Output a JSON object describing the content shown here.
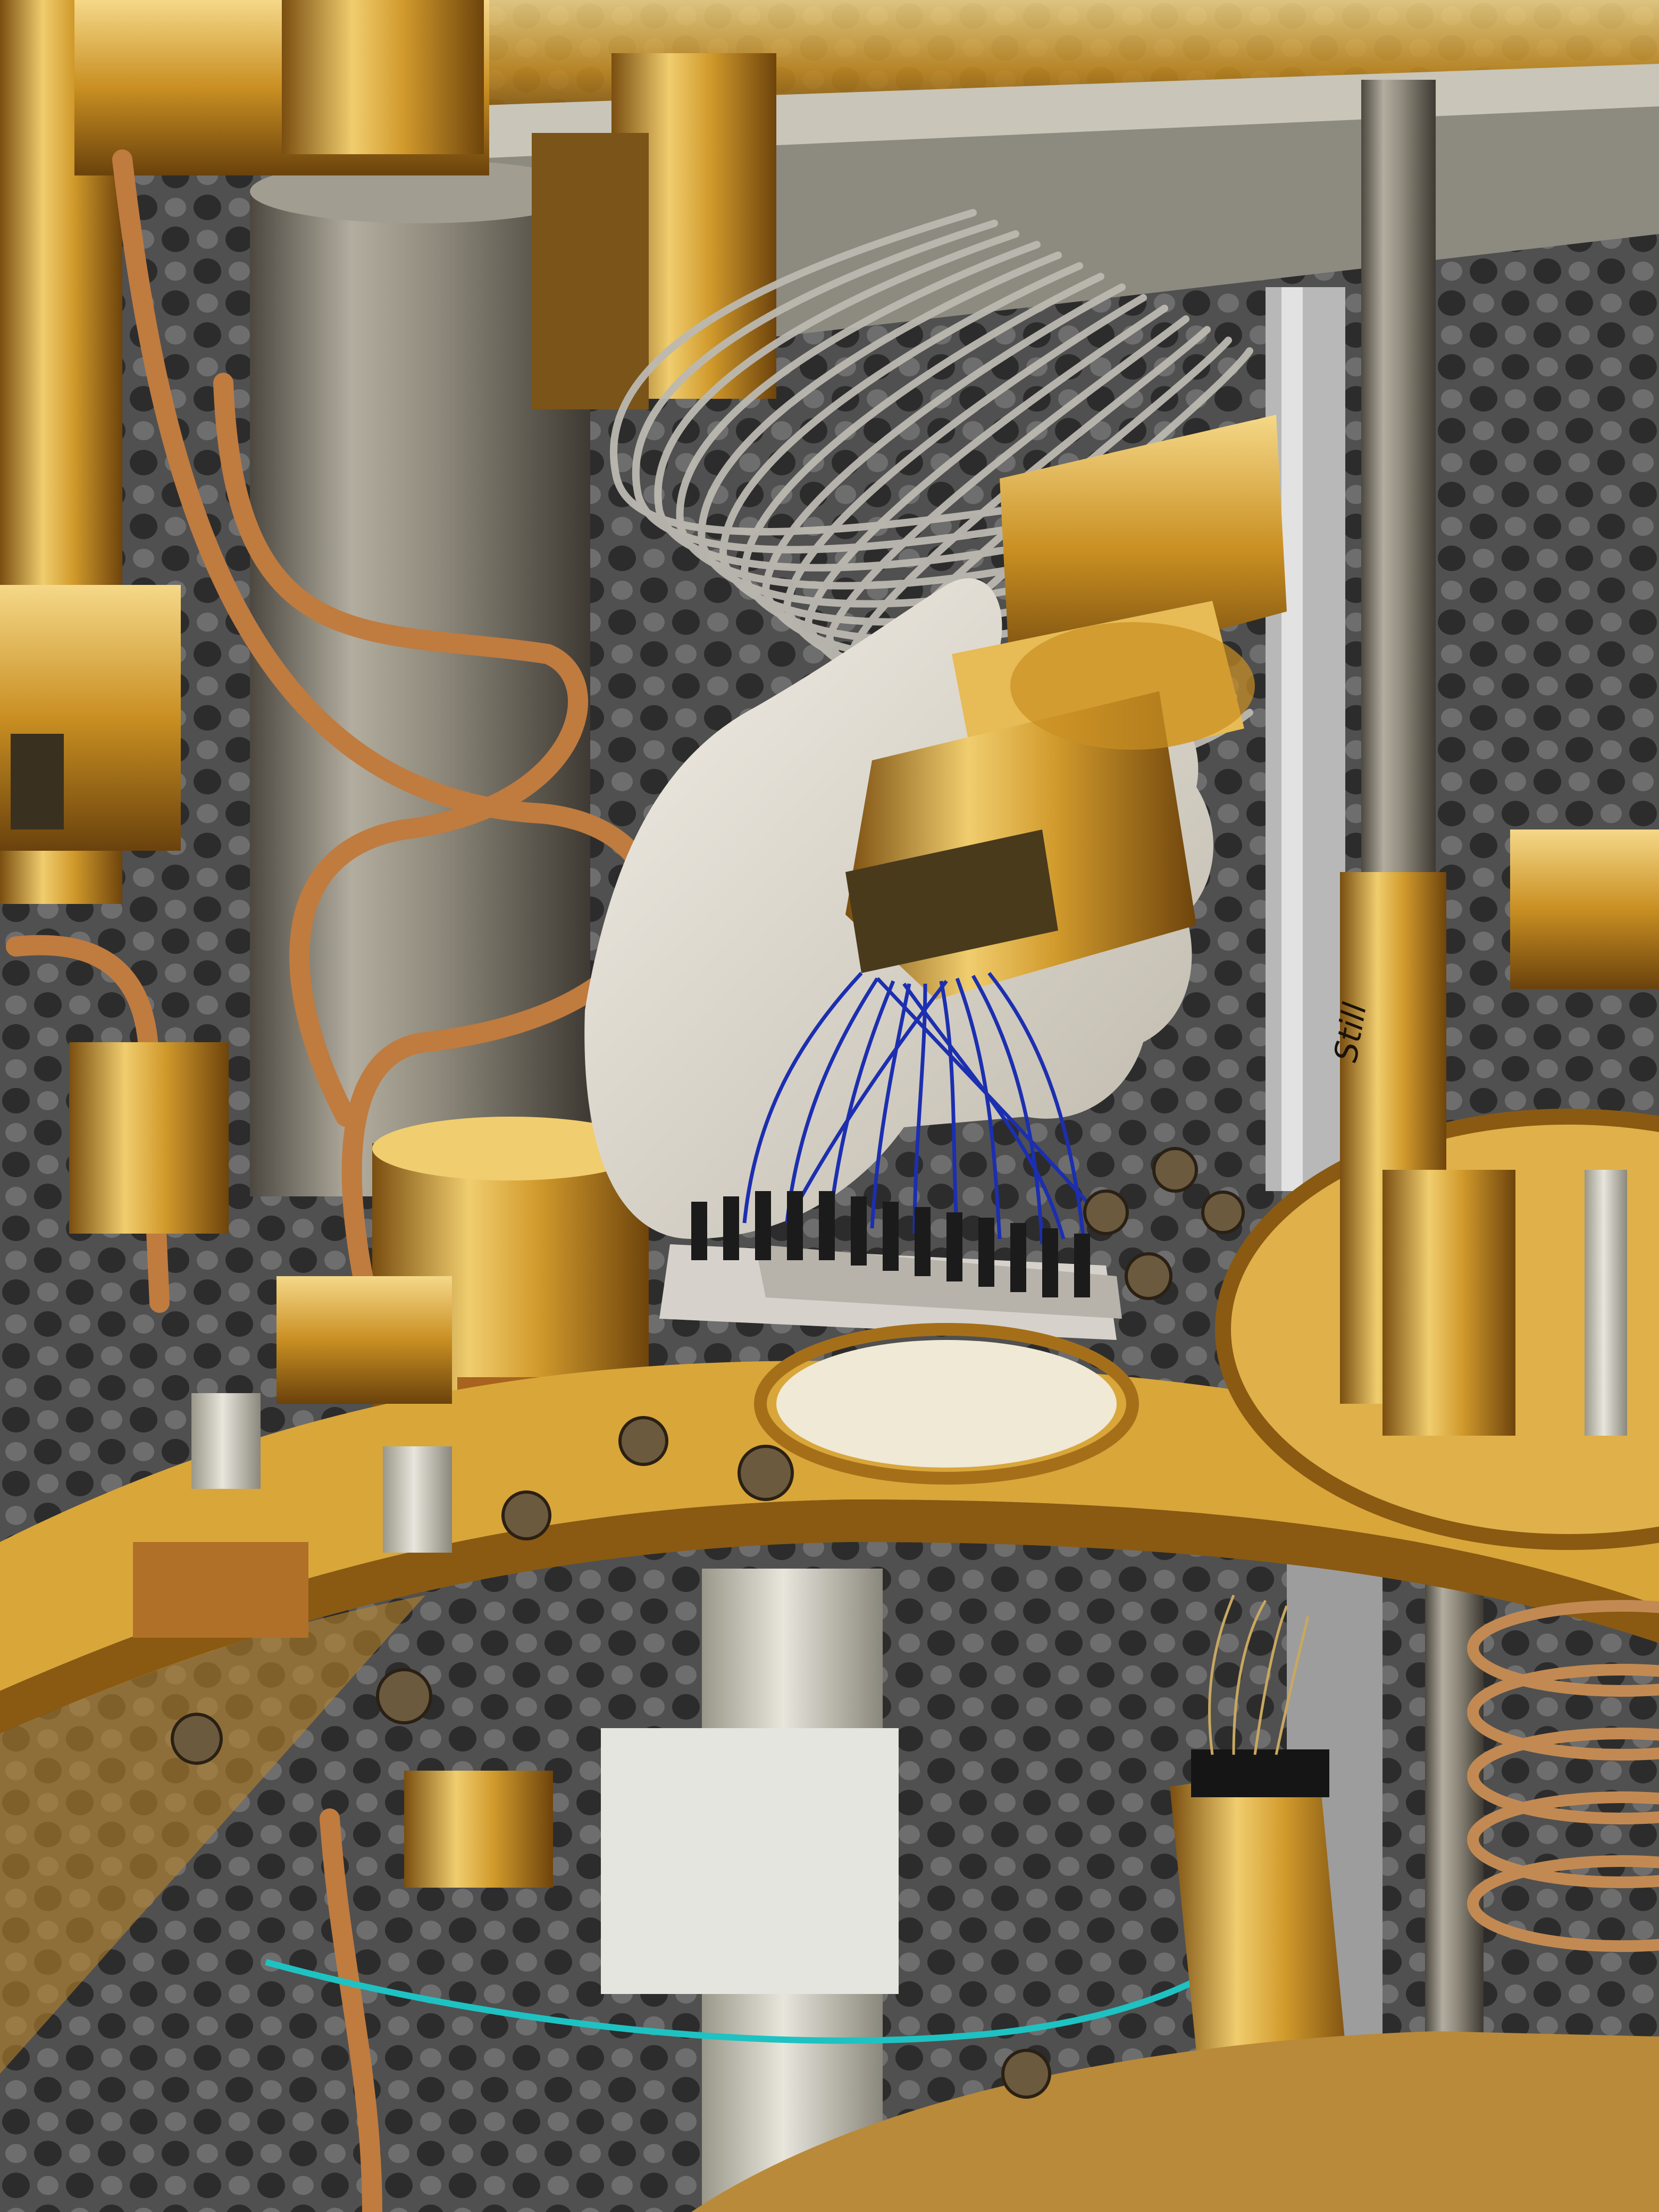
{
  "photo": {
    "block_marking": "Still",
    "colors": {
      "foam": "#5a5a5a",
      "foam_dark": "#2e2e2e",
      "gold": "#d8a536",
      "gold_dark": "#8a5a12",
      "gold_light": "#f2d27a",
      "copper": "#b8733a",
      "steel": "#8a8578",
      "glove": "#e6e1d6",
      "wire_blue": "#1c2fb0",
      "cable_silver": "#b9b7b0",
      "cyan_cable": "#1fc2c2"
    }
  }
}
